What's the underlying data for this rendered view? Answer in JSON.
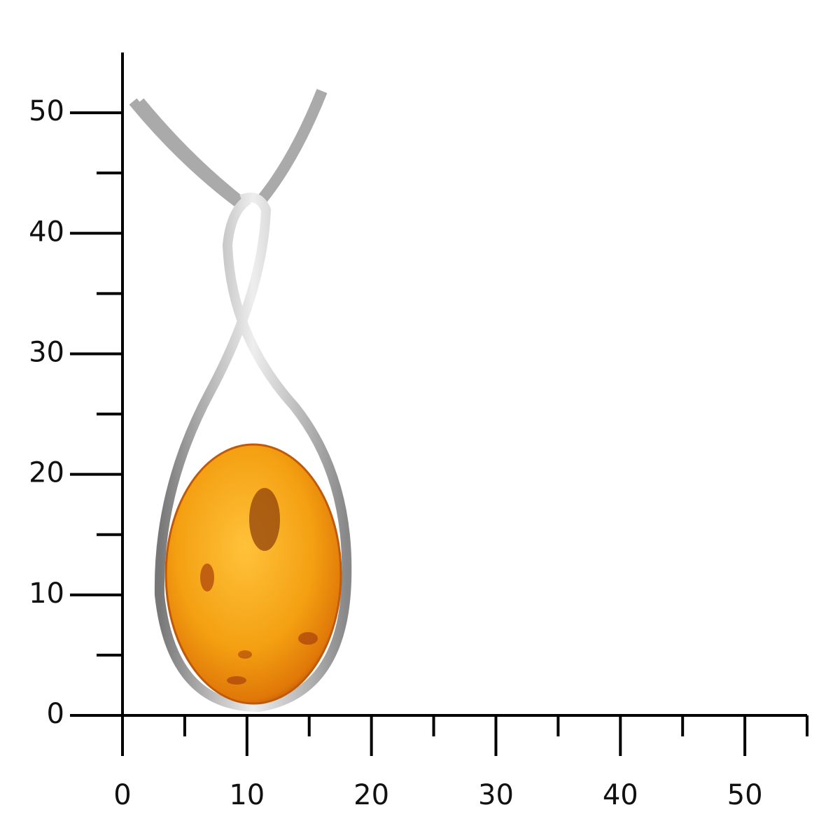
{
  "ruler": {
    "xlim": [
      0,
      55
    ],
    "ylim": [
      0,
      55
    ],
    "xticks": [
      0,
      10,
      20,
      30,
      40,
      50
    ],
    "yticks": [
      0,
      10,
      20,
      30,
      40,
      50
    ],
    "minor_xticks": [
      5,
      15,
      25,
      35,
      45,
      55
    ],
    "minor_yticks": [
      5,
      15,
      25,
      35,
      45
    ]
  }
}
